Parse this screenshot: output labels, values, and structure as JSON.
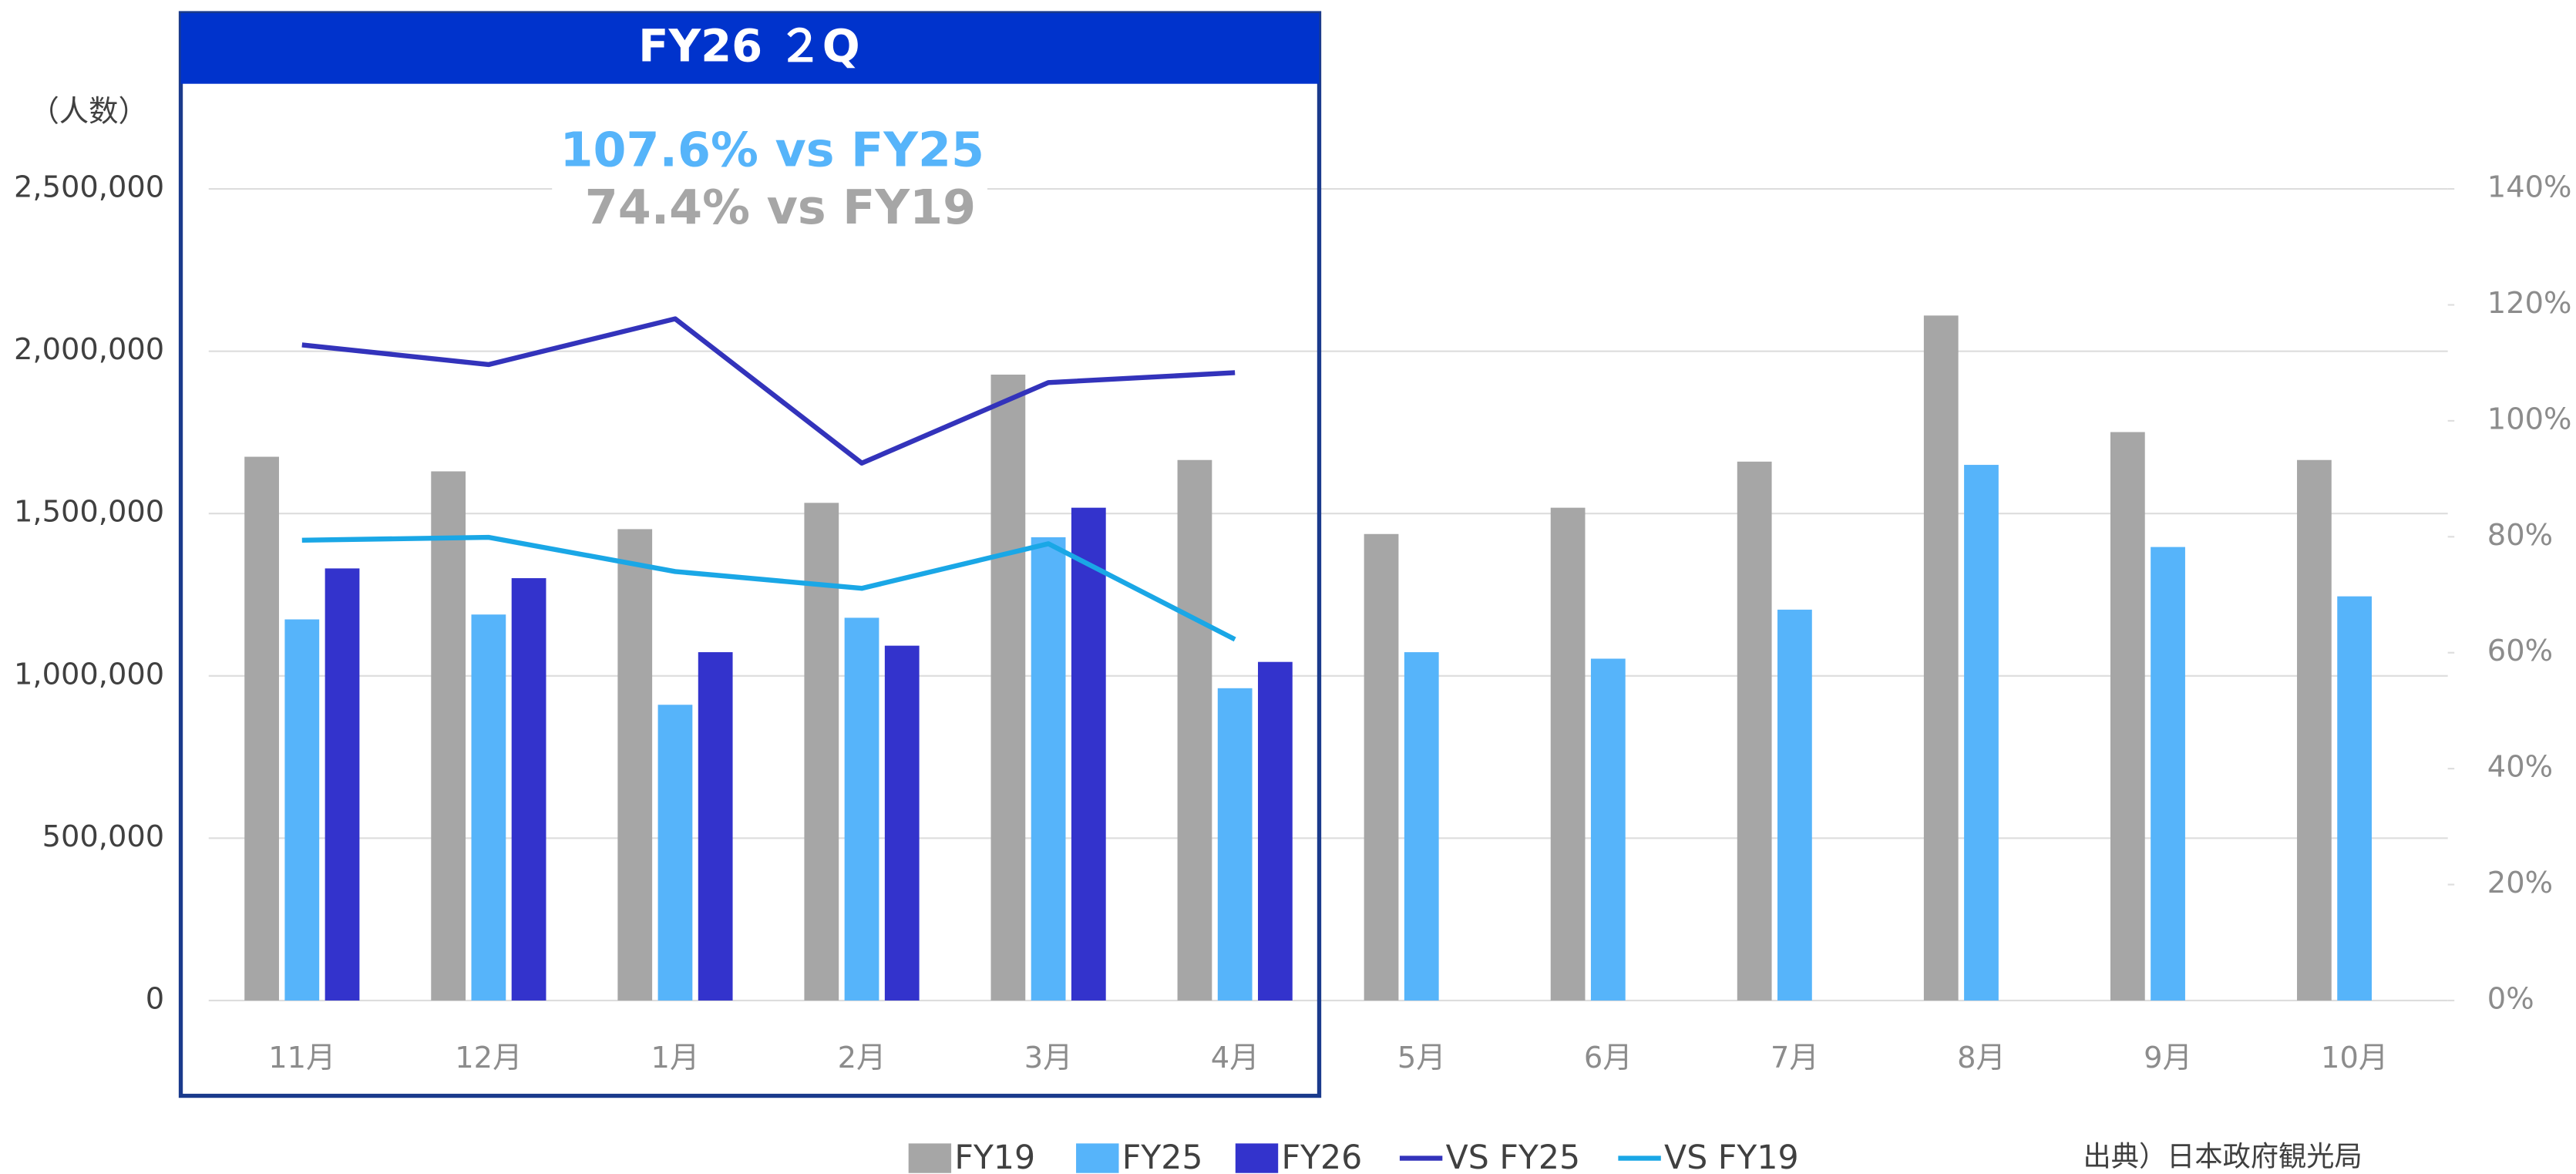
{
  "chart_data": {
    "type": "bar",
    "box_title": "FY26 ２Q",
    "annotations": [
      "107.6% vs FY25",
      "74.4% vs FY19"
    ],
    "y_label": "（人数）",
    "source": "出典）日本政府観光局",
    "categories": [
      "11月",
      "12月",
      "1月",
      "2月",
      "3月",
      "4月",
      "5月",
      "6月",
      "7月",
      "8月",
      "9月",
      "10月"
    ],
    "series": [
      {
        "name": "FY19",
        "type": "bar",
        "color": "#a6a6a6",
        "values": [
          1675000,
          1630000,
          1452000,
          1533000,
          1928000,
          1665000,
          1437000,
          1518000,
          1660000,
          2110000,
          1751000,
          1665000
        ]
      },
      {
        "name": "FY25",
        "type": "bar",
        "color": "#56b4fa",
        "values": [
          1174000,
          1189000,
          911000,
          1179000,
          1427000,
          962000,
          1073000,
          1053000,
          1204000,
          1650000,
          1397000,
          1245000
        ]
      },
      {
        "name": "FY26",
        "type": "bar",
        "color": "#3333cc",
        "values": [
          1331000,
          1301000,
          1073000,
          1093000,
          1518000,
          1043000,
          null,
          null,
          null,
          null,
          null,
          null
        ]
      },
      {
        "name": "VS FY25",
        "type": "line",
        "axis": "y2",
        "color": "#3333bb",
        "values": [
          113.1,
          109.7,
          117.6,
          92.7,
          106.6,
          108.3,
          null,
          null,
          null,
          null,
          null,
          null
        ]
      },
      {
        "name": "VS FY19",
        "type": "line",
        "axis": "y2",
        "color": "#1aa7e6",
        "values": [
          79.4,
          79.9,
          74.0,
          71.1,
          78.8,
          62.3,
          null,
          null,
          null,
          null,
          null,
          null
        ]
      }
    ],
    "ylim": [
      0,
      2500000
    ],
    "yticks": [
      0,
      {
        "value": 500000,
        "label": "500,000"
      },
      {
        "value": 1000000,
        "label": "1,000,000"
      },
      {
        "value": 1500000,
        "label": "1,500,000"
      },
      {
        "value": 2000000,
        "label": "2,000,000"
      },
      {
        "value": 2500000,
        "label": "2,500,000"
      }
    ],
    "y2lim": [
      0,
      140
    ],
    "y2ticks": [
      {
        "value": 0,
        "label": "0%"
      },
      {
        "value": 20,
        "label": "20%"
      },
      {
        "value": 40,
        "label": "40%"
      },
      {
        "value": 60,
        "label": "60%"
      },
      {
        "value": 80,
        "label": "80%"
      },
      {
        "value": 100,
        "label": "100%"
      },
      {
        "value": 120,
        "label": "120%"
      },
      {
        "value": 140,
        "label": "140%"
      }
    ],
    "grid": true,
    "legend": "bottom"
  }
}
